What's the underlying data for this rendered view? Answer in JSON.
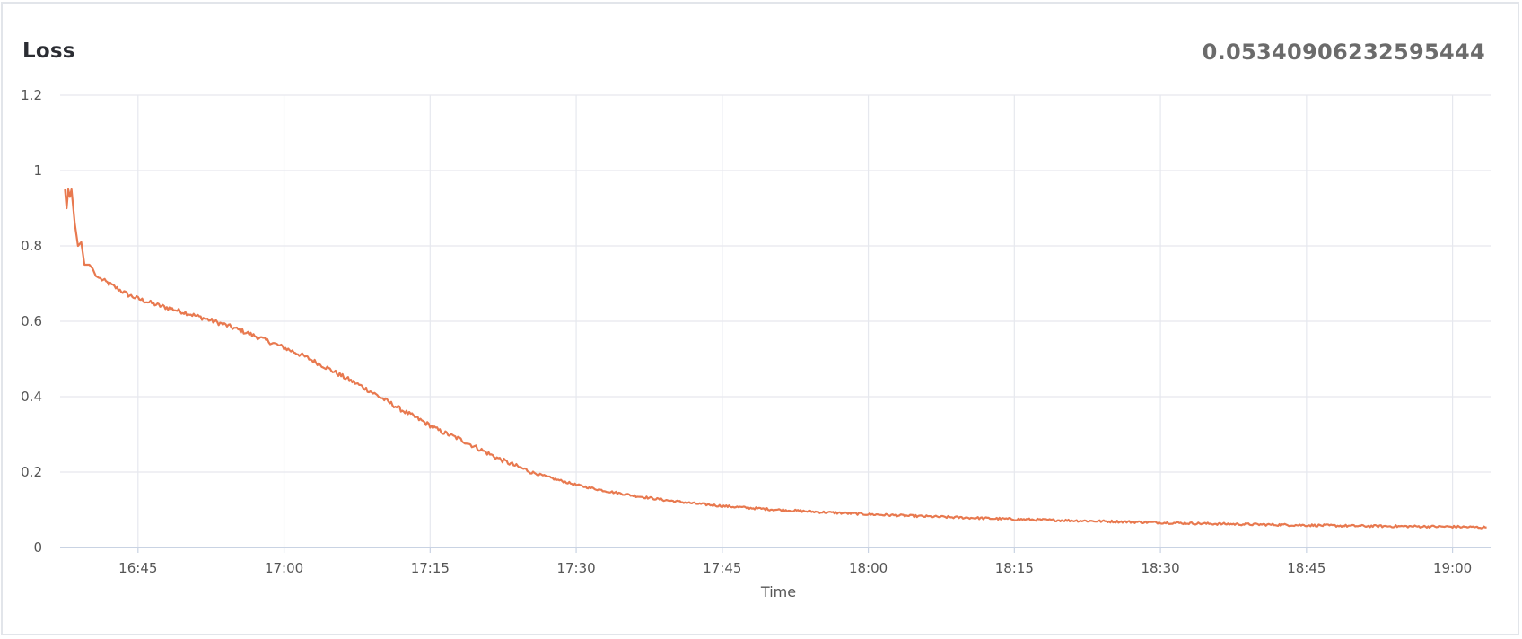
{
  "panel": {
    "title": "Loss",
    "current_value": "0.05340906232595444"
  },
  "chart_data": {
    "type": "line",
    "title": "Loss",
    "xlabel": "Time",
    "ylabel": "",
    "x_unit": "time of day (HH:MM)",
    "xlim": [
      "16:37",
      "19:04"
    ],
    "ylim": [
      0,
      1.2
    ],
    "x_ticks": [
      "16:45",
      "17:00",
      "17:15",
      "17:30",
      "17:45",
      "18:00",
      "18:15",
      "18:30",
      "18:45",
      "19:00"
    ],
    "y_ticks": [
      "0",
      "0.2",
      "0.4",
      "0.6",
      "0.8",
      "1",
      "1.2"
    ],
    "grid": true,
    "legend": "none",
    "series": [
      {
        "color": "#e8794f",
        "points": [
          [
            "16:37:30",
            0.95
          ],
          [
            "16:37:40",
            0.9
          ],
          [
            "16:37:50",
            0.95
          ],
          [
            "16:38:00",
            0.93
          ],
          [
            "16:38:10",
            0.95
          ],
          [
            "16:38:30",
            0.86
          ],
          [
            "16:38:50",
            0.8
          ],
          [
            "16:39:10",
            0.81
          ],
          [
            "16:39:30",
            0.75
          ],
          [
            "16:40:00",
            0.75
          ],
          [
            "16:40:20",
            0.74
          ],
          [
            "16:40:40",
            0.72
          ],
          [
            "16:41:00",
            0.715
          ],
          [
            "16:42:00",
            0.7
          ],
          [
            "16:43:00",
            0.685
          ],
          [
            "16:44:00",
            0.67
          ],
          [
            "16:45:00",
            0.66
          ],
          [
            "16:47:00",
            0.643
          ],
          [
            "16:50:00",
            0.622
          ],
          [
            "16:52:00",
            0.606
          ],
          [
            "16:54:00",
            0.59
          ],
          [
            "16:56:00",
            0.571
          ],
          [
            "16:58:00",
            0.551
          ],
          [
            "17:00:00",
            0.53
          ],
          [
            "17:02:00",
            0.508
          ],
          [
            "17:04:00",
            0.482
          ],
          [
            "17:06:00",
            0.454
          ],
          [
            "17:08:00",
            0.427
          ],
          [
            "17:10:00",
            0.397
          ],
          [
            "17:12:00",
            0.366
          ],
          [
            "17:14:00",
            0.338
          ],
          [
            "17:16:00",
            0.309
          ],
          [
            "17:18:00",
            0.288
          ],
          [
            "17:20:00",
            0.262
          ],
          [
            "17:22:00",
            0.236
          ],
          [
            "17:24:00",
            0.214
          ],
          [
            "17:26:00",
            0.195
          ],
          [
            "17:28:00",
            0.18
          ],
          [
            "17:30:00",
            0.166
          ],
          [
            "17:33:00",
            0.15
          ],
          [
            "17:36:00",
            0.137
          ],
          [
            "17:39:00",
            0.126
          ],
          [
            "17:42:00",
            0.117
          ],
          [
            "17:45:00",
            0.11
          ],
          [
            "17:50:00",
            0.101
          ],
          [
            "17:55:00",
            0.094
          ],
          [
            "18:00:00",
            0.088
          ],
          [
            "18:05:00",
            0.083
          ],
          [
            "18:10:00",
            0.079
          ],
          [
            "18:15:00",
            0.075
          ],
          [
            "18:20:00",
            0.072
          ],
          [
            "18:25:00",
            0.069
          ],
          [
            "18:30:00",
            0.066
          ],
          [
            "18:35:00",
            0.063
          ],
          [
            "18:40:00",
            0.061
          ],
          [
            "18:45:00",
            0.059
          ],
          [
            "18:50:00",
            0.057
          ],
          [
            "18:55:00",
            0.056
          ],
          [
            "19:00:00",
            0.055
          ],
          [
            "19:03:30",
            0.053
          ]
        ]
      }
    ]
  }
}
